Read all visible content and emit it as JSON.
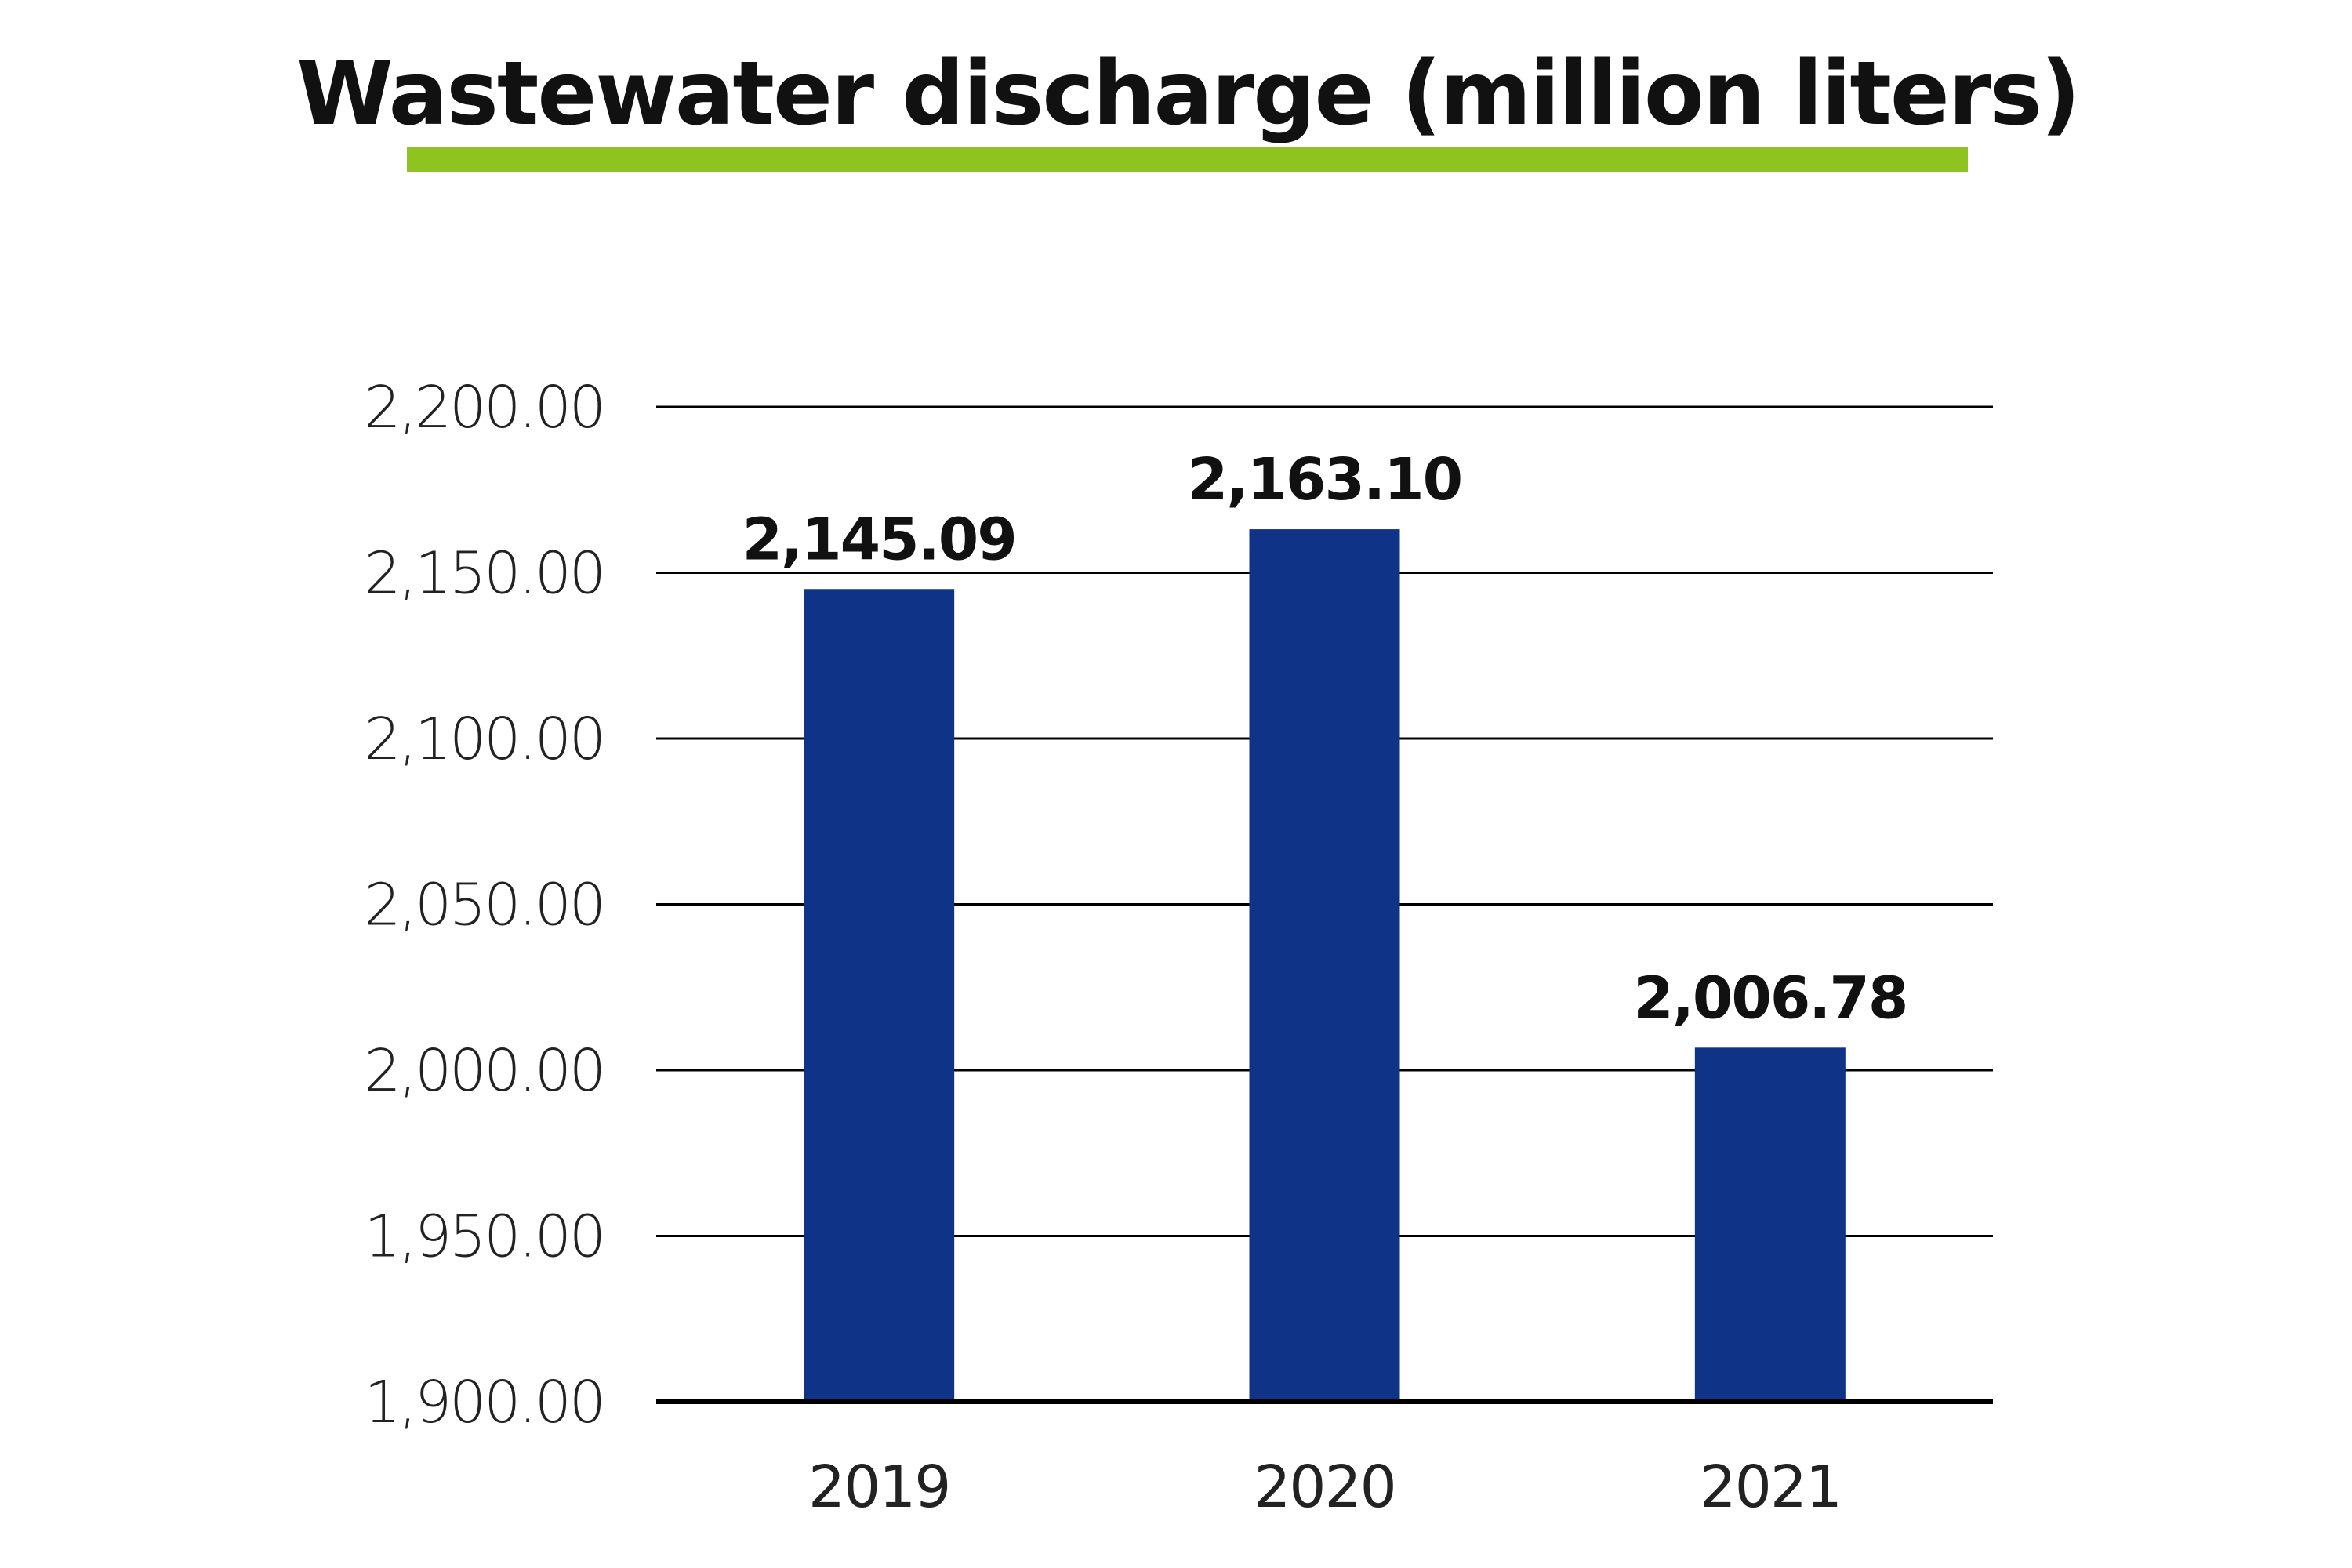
{
  "colors": {
    "bar": "#0e3387",
    "underline": "#8fc31f",
    "grid": "#000000"
  },
  "chart_data": {
    "type": "bar",
    "title": "Wastewater discharge (million liters)",
    "xlabel": "",
    "ylabel": "",
    "categories": [
      "2019",
      "2020",
      "2021"
    ],
    "values": [
      2145.09,
      2163.1,
      2006.78
    ],
    "data_labels": [
      "2,145.09",
      "2,163.10",
      "2,006.78"
    ],
    "ylim": [
      1900,
      2200
    ],
    "yticks": [
      1900,
      1950,
      2000,
      2050,
      2100,
      2150,
      2200
    ],
    "ytick_labels": [
      "1,900.00",
      "1,950.00",
      "2,000.00",
      "2,050.00",
      "2,100.00",
      "2,150.00",
      "2,200.00"
    ],
    "grid": true,
    "legend": "none"
  }
}
